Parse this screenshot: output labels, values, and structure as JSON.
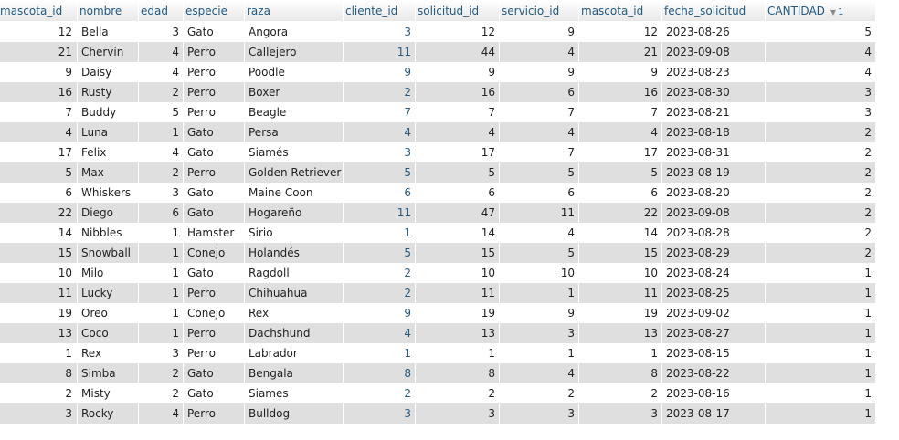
{
  "columns": [
    "mascota_id",
    "nombre",
    "edad",
    "especie",
    "raza",
    "cliente_id",
    "solicitud_id",
    "servicio_id",
    "mascota_id",
    "fecha_solicitud",
    "CANTIDAD"
  ],
  "sort": {
    "icon": "sort-descending-icon",
    "glyph": "▼",
    "order": "1"
  },
  "rows": [
    [
      "12",
      "Bella",
      "3",
      "Gato",
      "Angora",
      "3",
      "12",
      "9",
      "12",
      "2023-08-26",
      "5"
    ],
    [
      "21",
      "Chervin",
      "4",
      "Perro",
      "Callejero",
      "11",
      "44",
      "4",
      "21",
      "2023-09-08",
      "4"
    ],
    [
      "9",
      "Daisy",
      "4",
      "Perro",
      "Poodle",
      "9",
      "9",
      "9",
      "9",
      "2023-08-23",
      "4"
    ],
    [
      "16",
      "Rusty",
      "2",
      "Perro",
      "Boxer",
      "2",
      "16",
      "6",
      "16",
      "2023-08-30",
      "3"
    ],
    [
      "7",
      "Buddy",
      "5",
      "Perro",
      "Beagle",
      "7",
      "7",
      "7",
      "7",
      "2023-08-21",
      "3"
    ],
    [
      "4",
      "Luna",
      "1",
      "Gato",
      "Persa",
      "4",
      "4",
      "4",
      "4",
      "2023-08-18",
      "2"
    ],
    [
      "17",
      "Felix",
      "4",
      "Gato",
      "Siamés",
      "3",
      "17",
      "7",
      "17",
      "2023-08-31",
      "2"
    ],
    [
      "5",
      "Max",
      "2",
      "Perro",
      "Golden Retriever",
      "5",
      "5",
      "5",
      "5",
      "2023-08-19",
      "2"
    ],
    [
      "6",
      "Whiskers",
      "3",
      "Gato",
      "Maine Coon",
      "6",
      "6",
      "6",
      "6",
      "2023-08-20",
      "2"
    ],
    [
      "22",
      "Diego",
      "6",
      "Gato",
      "Hogareño",
      "11",
      "47",
      "11",
      "22",
      "2023-09-08",
      "2"
    ],
    [
      "14",
      "Nibbles",
      "1",
      "Hamster",
      "Sirio",
      "1",
      "14",
      "4",
      "14",
      "2023-08-28",
      "2"
    ],
    [
      "15",
      "Snowball",
      "1",
      "Conejo",
      "Holandés",
      "5",
      "15",
      "5",
      "15",
      "2023-08-29",
      "2"
    ],
    [
      "10",
      "Milo",
      "1",
      "Gato",
      "Ragdoll",
      "2",
      "10",
      "10",
      "10",
      "2023-08-24",
      "1"
    ],
    [
      "11",
      "Lucky",
      "1",
      "Perro",
      "Chihuahua",
      "2",
      "11",
      "1",
      "11",
      "2023-08-25",
      "1"
    ],
    [
      "19",
      "Oreo",
      "1",
      "Conejo",
      "Rex",
      "9",
      "19",
      "9",
      "19",
      "2023-09-02",
      "1"
    ],
    [
      "13",
      "Coco",
      "1",
      "Perro",
      "Dachshund",
      "4",
      "13",
      "3",
      "13",
      "2023-08-27",
      "1"
    ],
    [
      "1",
      "Rex",
      "3",
      "Perro",
      "Labrador",
      "1",
      "1",
      "1",
      "1",
      "2023-08-15",
      "1"
    ],
    [
      "8",
      "Simba",
      "2",
      "Gato",
      "Bengala",
      "8",
      "8",
      "4",
      "8",
      "2023-08-22",
      "1"
    ],
    [
      "2",
      "Misty",
      "2",
      "Gato",
      "Siames",
      "2",
      "2",
      "2",
      "2",
      "2023-08-16",
      "1"
    ],
    [
      "3",
      "Rocky",
      "4",
      "Perro",
      "Bulldog",
      "3",
      "3",
      "3",
      "3",
      "2023-08-17",
      "1"
    ]
  ]
}
